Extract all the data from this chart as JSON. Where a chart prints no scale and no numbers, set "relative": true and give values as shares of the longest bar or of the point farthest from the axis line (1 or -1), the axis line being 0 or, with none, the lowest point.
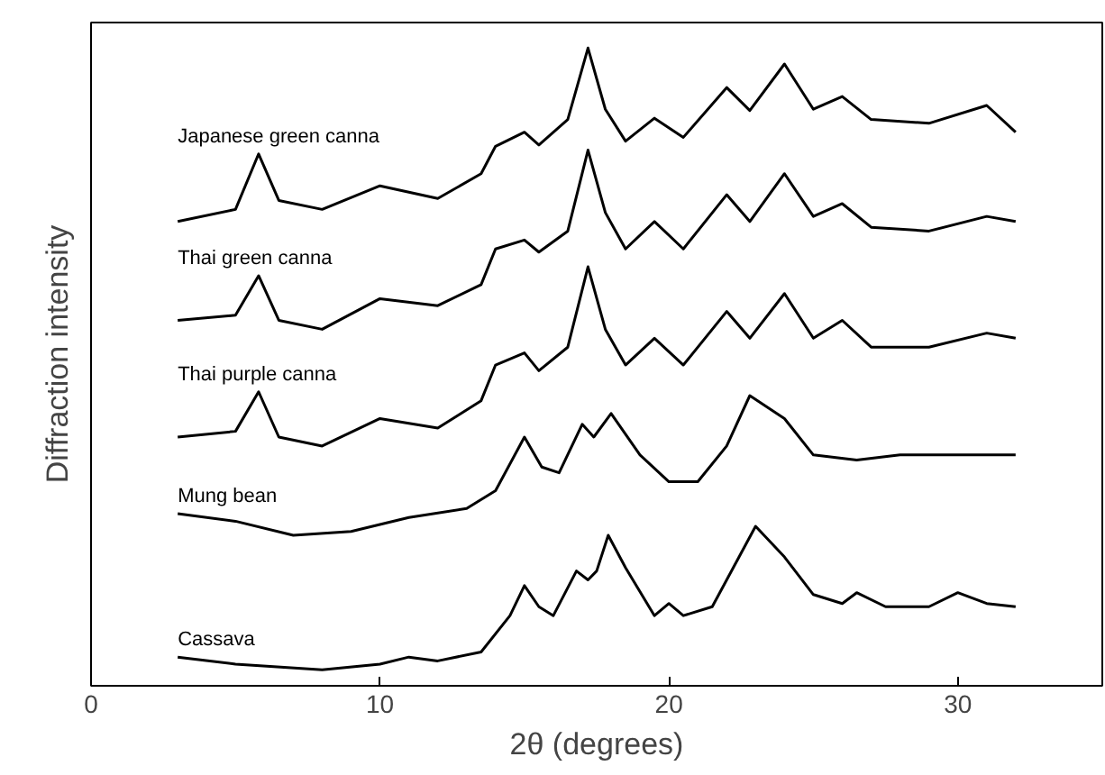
{
  "chart_data": {
    "type": "line",
    "relative": true,
    "xlabel": "2θ (degrees)",
    "ylabel": "Diffraction intensity",
    "xlim": [
      0,
      35
    ],
    "xticks": [
      0,
      10,
      20,
      30
    ],
    "tick_labels": "x",
    "grid": false,
    "legend": false,
    "marker": "none",
    "line_style": "solid",
    "series": [
      {
        "name": "Japanese green canna",
        "color": "#000000",
        "x": [
          3,
          5,
          5.8,
          6.5,
          8,
          10,
          12,
          13.5,
          14,
          15,
          15.5,
          16.5,
          17.2,
          17.8,
          18.5,
          19.5,
          20.5,
          22,
          22.8,
          24,
          25,
          26,
          27,
          29,
          31,
          32
        ],
        "values": [
          0.728,
          0.747,
          0.834,
          0.761,
          0.747,
          0.784,
          0.764,
          0.803,
          0.846,
          0.868,
          0.848,
          0.888,
          1,
          0.904,
          0.854,
          0.89,
          0.86,
          0.938,
          0.902,
          0.975,
          0.904,
          0.924,
          0.888,
          0.882,
          0.91,
          0.868
        ]
      },
      {
        "name": "Thai green canna",
        "color": "#000000",
        "x": [
          3,
          5,
          5.8,
          6.5,
          8,
          10,
          12,
          13.5,
          14,
          15,
          15.5,
          16.5,
          17.2,
          17.8,
          18.5,
          19.5,
          20.5,
          22,
          22.8,
          24,
          25,
          26,
          27,
          29,
          31,
          32
        ],
        "values": [
          0.573,
          0.581,
          0.643,
          0.573,
          0.559,
          0.607,
          0.596,
          0.629,
          0.685,
          0.699,
          0.68,
          0.713,
          0.84,
          0.742,
          0.685,
          0.728,
          0.685,
          0.77,
          0.728,
          0.803,
          0.736,
          0.756,
          0.719,
          0.713,
          0.736,
          0.728
        ]
      },
      {
        "name": "Thai purple canna",
        "color": "#000000",
        "x": [
          3,
          5,
          5.8,
          6.5,
          8,
          10,
          12,
          13.5,
          14,
          15,
          15.5,
          16.5,
          17.2,
          17.8,
          18.5,
          19.5,
          20.5,
          22,
          22.8,
          24,
          25,
          26,
          27,
          29,
          31,
          32
        ],
        "values": [
          0.39,
          0.399,
          0.461,
          0.39,
          0.376,
          0.419,
          0.404,
          0.447,
          0.503,
          0.522,
          0.494,
          0.531,
          0.657,
          0.559,
          0.503,
          0.545,
          0.503,
          0.587,
          0.545,
          0.615,
          0.545,
          0.573,
          0.531,
          0.531,
          0.553,
          0.545
        ]
      },
      {
        "name": "Mung bean",
        "color": "#000000",
        "x": [
          3,
          5,
          7,
          9,
          11,
          13,
          14,
          15,
          15.6,
          16.2,
          17,
          17.4,
          18,
          19,
          20,
          21,
          22,
          22.8,
          24,
          25,
          26.5,
          28,
          30,
          32
        ],
        "values": [
          0.27,
          0.258,
          0.236,
          0.242,
          0.264,
          0.278,
          0.306,
          0.39,
          0.343,
          0.334,
          0.41,
          0.39,
          0.427,
          0.362,
          0.32,
          0.32,
          0.376,
          0.455,
          0.419,
          0.362,
          0.354,
          0.362,
          0.362,
          0.362
        ]
      },
      {
        "name": "Cassava",
        "color": "#000000",
        "x": [
          3,
          5,
          8,
          10,
          11,
          12,
          13.5,
          14.5,
          15,
          15.5,
          16,
          16.8,
          17.2,
          17.5,
          17.9,
          18.5,
          19.5,
          20,
          20.5,
          21.5,
          22.5,
          23,
          24,
          25,
          26,
          26.5,
          27.5,
          29,
          30,
          31,
          32
        ],
        "values": [
          0.045,
          0.034,
          0.025,
          0.034,
          0.045,
          0.039,
          0.053,
          0.11,
          0.157,
          0.124,
          0.11,
          0.18,
          0.166,
          0.18,
          0.236,
          0.185,
          0.11,
          0.129,
          0.11,
          0.124,
          0.208,
          0.25,
          0.202,
          0.143,
          0.129,
          0.146,
          0.124,
          0.124,
          0.146,
          0.129,
          0.124
        ]
      }
    ]
  }
}
